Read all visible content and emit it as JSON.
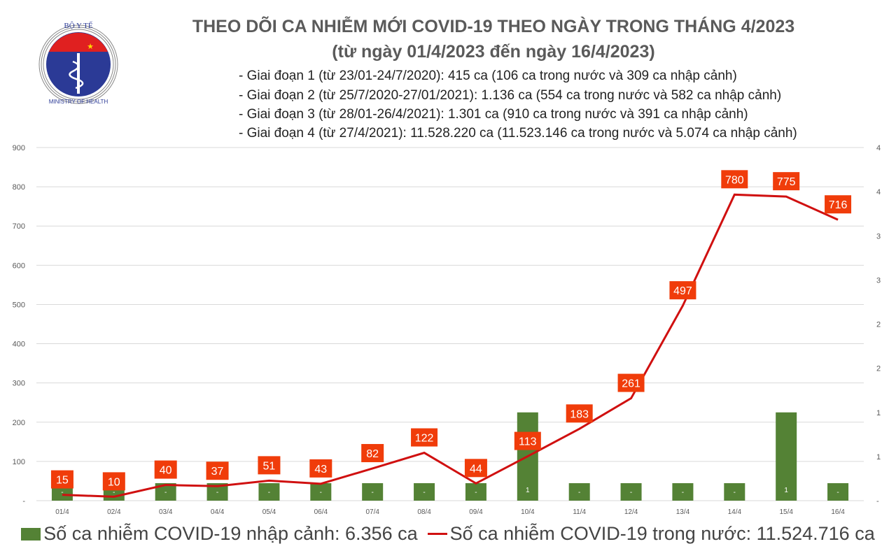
{
  "logo": {
    "top_text": "BỘ Y TẾ",
    "bottom_text": "MINISTRY OF HEALTH"
  },
  "title": "THEO DÕI CA NHIỄM MỚI COVID-19 THEO NGÀY TRONG THÁNG 4/2023",
  "subtitle": "(từ ngày 01/4/2023 đến ngày 16/4/2023)",
  "stages": [
    "- Giai đoạn 1 (từ 23/01-24/7/2020): 415 ca (106 ca trong nước và 309 ca nhập cảnh)",
    "- Giai đoạn 2 (từ 25/7/2020-27/01/2021): 1.136 ca (554 ca trong nước và 582 ca nhập cảnh)",
    "- Giai đoạn 3 (từ 28/01-26/4/2021): 1.301 ca (910 ca trong nước và 391 ca nhập cảnh)",
    "- Giai đoạn 4 (từ 27/4/2021): 11.528.220 ca (11.523.146 ca trong nước và 5.074 ca nhập cảnh)"
  ],
  "legend": {
    "bar": "Số ca nhiễm COVID-19 nhập cảnh: 6.356 ca",
    "line": "Số ca nhiễm COVID-19 trong nước: 11.524.716 ca"
  },
  "chart_data": {
    "type": "bar+line",
    "categories": [
      "01/4",
      "02/4",
      "03/4",
      "04/4",
      "05/4",
      "06/4",
      "07/4",
      "08/4",
      "09/4",
      "10/4",
      "11/4",
      "12/4",
      "13/4",
      "14/4",
      "15/4",
      "16/4"
    ],
    "series": [
      {
        "name": "Số ca nhiễm COVID-19 nhập cảnh: 6.356 ca",
        "type": "bar",
        "axis": "right",
        "color": "#548235",
        "values": [
          0,
          0,
          0,
          0,
          0,
          0,
          0,
          0,
          0,
          1,
          0,
          0,
          0,
          0,
          1,
          0
        ],
        "labels": [
          "-",
          "-",
          "-",
          "-",
          "-",
          "-",
          "-",
          "-",
          "-",
          "1",
          "-",
          "-",
          "-",
          "-",
          "1",
          "-"
        ]
      },
      {
        "name": "Số ca nhiễm COVID-19 trong nước: 11.524.716 ca",
        "type": "line",
        "axis": "left",
        "color": "#d01010",
        "label_bg": "#f03c0a",
        "values": [
          15,
          10,
          40,
          37,
          51,
          43,
          82,
          122,
          44,
          113,
          183,
          261,
          497,
          780,
          775,
          716
        ]
      }
    ],
    "y_left": {
      "range": [
        0,
        900
      ],
      "ticks": [
        "-",
        "100",
        "200",
        "300",
        "400",
        "500",
        "600",
        "700",
        "800",
        "900"
      ]
    },
    "y_right": {
      "range": [
        0,
        4
      ],
      "ticks": [
        "-",
        "1",
        "1",
        "2",
        "2",
        "3",
        "3",
        "4",
        "4"
      ]
    },
    "grid": true,
    "legend_position": "bottom"
  }
}
